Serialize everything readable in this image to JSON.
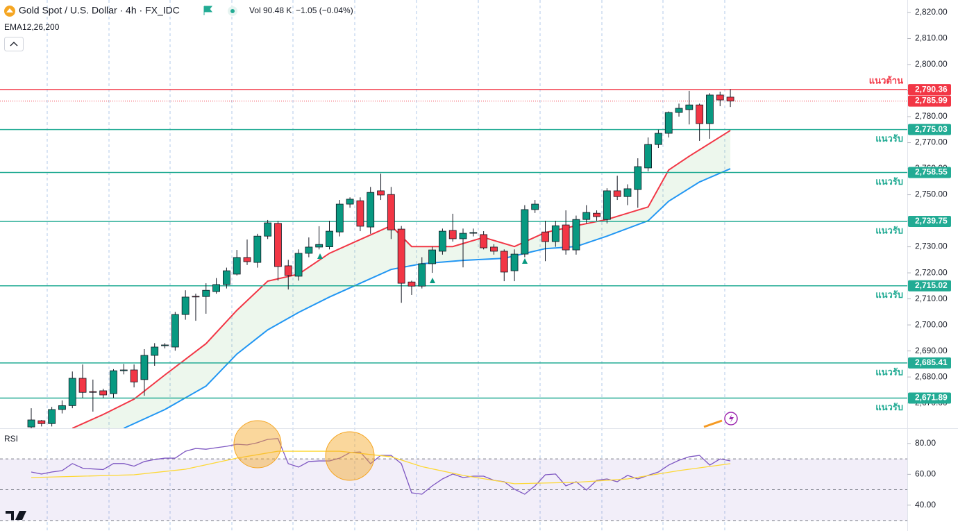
{
  "header": {
    "symbol": "Gold Spot / U.S. Dollar · 4h · FX_IDC",
    "vol_label": "Vol",
    "vol_value": "90.48 K",
    "change": "−1.05 (−0.04%)",
    "indicator": "EMA12,26,200"
  },
  "chart_data": [
    {
      "type": "candlestick",
      "up_color": "#089981",
      "down_color": "#f23645",
      "ylim": [
        2660.3,
        2824.8
      ],
      "yticks": [
        {
          "value": 2670,
          "label": "2,670.00"
        },
        {
          "value": 2680,
          "label": "2,680.00"
        },
        {
          "value": 2690,
          "label": "2,690.00"
        },
        {
          "value": 2700,
          "label": "2,700.00"
        },
        {
          "value": 2710,
          "label": "2,710.00"
        },
        {
          "value": 2720,
          "label": "2,720.00"
        },
        {
          "value": 2730,
          "label": "2,730.00"
        },
        {
          "value": 2740,
          "label": "2,740.00"
        },
        {
          "value": 2750,
          "label": "2,750.00"
        },
        {
          "value": 2760,
          "label": "2,760.00"
        },
        {
          "value": 2770,
          "label": "2,770.00"
        },
        {
          "value": 2780,
          "label": "2,780.00"
        },
        {
          "value": 2790,
          "label": "2,790.00"
        },
        {
          "value": 2800,
          "label": "2,800.00"
        },
        {
          "value": 2810,
          "label": "2,810.00"
        },
        {
          "value": 2820,
          "label": "2,820.00"
        }
      ],
      "open": [
        2660.8,
        2663.2,
        2662.1,
        2667.5,
        2669,
        2679.5,
        2674.4,
        2674.7,
        2673.6,
        2682.4,
        2682.7,
        2679,
        2688.3,
        2692,
        2691.5,
        2704,
        2711,
        2710.9,
        2712.8,
        2715.5,
        2719.5,
        2725.9,
        2724,
        2734.1,
        2739,
        2722.7,
        2718.7,
        2727.5,
        2729.9,
        2730,
        2735.7,
        2746.4,
        2747.7,
        2737.6,
        2751.5,
        2750.1,
        2736.8,
        2716.5,
        2714.9,
        2723.5,
        2728.3,
        2736.3,
        2733.1,
        2735.2,
        2734.7,
        2729.9,
        2728.3,
        2720.8,
        2727.2,
        2744.3,
        2735.7,
        2732,
        2738.4,
        2728.8,
        2740.5,
        2742.9,
        2740.5,
        2751.5,
        2749.3,
        2752,
        2760.3,
        2769.3,
        2773.6,
        2781.6,
        2782.7,
        2784.5,
        2777.3,
        2788.3,
        2787.5
      ],
      "high": [
        2668,
        2663.5,
        2668.5,
        2671,
        2682.1,
        2684.8,
        2679,
        2675.5,
        2683,
        2685,
        2684.8,
        2690.7,
        2693,
        2693,
        2705,
        2713.3,
        2712,
        2716,
        2718,
        2722,
        2728.8,
        2732.8,
        2735,
        2740.3,
        2740,
        2725,
        2729,
        2733.6,
        2737.9,
        2740,
        2748,
        2749,
        2749,
        2753,
        2758.1,
        2753,
        2738,
        2717,
        2726,
        2730,
        2737,
        2742.7,
        2737,
        2737,
        2736,
        2731,
        2729,
        2729,
        2746,
        2748,
        2740,
        2740,
        2744,
        2742,
        2746,
        2744,
        2752.5,
        2757.3,
        2754,
        2764,
        2772,
        2775,
        2782,
        2785,
        2789.9,
        2785,
        2789,
        2789.6,
        2790.6
      ],
      "low": [
        2660,
        2661,
        2661,
        2666,
        2668,
        2672,
        2666.7,
        2672,
        2672,
        2681,
        2676,
        2672.8,
        2684.3,
        2691,
        2690.1,
        2702,
        2701.6,
        2704.3,
        2712,
        2714,
        2719,
        2723,
        2722,
        2733,
        2717,
        2713.6,
        2717,
        2726,
        2729,
        2729,
        2734,
        2745,
        2736,
        2735,
        2748,
        2733,
        2708.5,
        2711.5,
        2714,
        2720,
        2727,
        2732,
        2722.1,
        2734,
        2729,
        2727,
        2716.8,
        2716.8,
        2726,
        2743,
        2724.5,
        2730,
        2727,
        2727,
        2739,
        2740,
        2739,
        2748,
        2746,
        2745,
        2759,
        2768,
        2772,
        2780,
        2777,
        2770.7,
        2771.5,
        2784,
        2783.7
      ],
      "close": [
        2663.5,
        2662.1,
        2667.5,
        2669,
        2679.5,
        2674.1,
        2674.1,
        2673.1,
        2682.4,
        2682.7,
        2678.1,
        2688.3,
        2691.5,
        2692.3,
        2704,
        2710.7,
        2710.9,
        2713.3,
        2715.5,
        2720.8,
        2725.9,
        2724.3,
        2734.1,
        2739.2,
        2722.4,
        2719,
        2727.5,
        2729.9,
        2730.9,
        2736,
        2746.4,
        2748.3,
        2737.9,
        2750.9,
        2749.9,
        2736.5,
        2716,
        2714.9,
        2723.5,
        2728.8,
        2736,
        2733.1,
        2735.2,
        2735.5,
        2729.6,
        2728.3,
        2720.3,
        2727.2,
        2744.3,
        2746.4,
        2732,
        2738.1,
        2728.8,
        2740.5,
        2743.2,
        2741.6,
        2751.5,
        2749.3,
        2752.3,
        2760.8,
        2769.3,
        2773.6,
        2781.6,
        2783.2,
        2784.5,
        2777.3,
        2788.3,
        2786.4,
        2785.99
      ],
      "series": [
        {
          "color": "#f23645",
          "x": [
            4,
            7,
            10,
            13,
            17,
            20,
            23,
            26,
            29,
            32,
            35,
            37,
            41,
            44,
            47,
            50,
            53,
            56,
            60,
            62,
            64,
            68
          ],
          "values": [
            2660.3,
            2665.6,
            2671.5,
            2680.8,
            2692.8,
            2705.6,
            2716.8,
            2719.5,
            2727.5,
            2732.8,
            2738.1,
            2730.1,
            2730.1,
            2733.6,
            2730.1,
            2735.5,
            2738.1,
            2740.5,
            2745.3,
            2759.5,
            2764.8,
            2774.7
          ]
        },
        {
          "color": "#2196f3",
          "x": [
            9,
            13,
            17,
            20,
            23,
            26,
            29,
            32,
            35,
            38,
            42,
            46,
            50,
            53,
            56,
            60,
            62,
            65,
            68
          ],
          "values": [
            2660.3,
            2667.5,
            2676.5,
            2688.8,
            2698.1,
            2704.8,
            2710.7,
            2716,
            2721.3,
            2723.5,
            2724.8,
            2725.6,
            2729.3,
            2730.1,
            2734.1,
            2740,
            2747.5,
            2754.9,
            2760
          ]
        }
      ],
      "levels": {
        "values": [
          2790.36,
          2775.03,
          2758.55,
          2739.75,
          2715.02,
          2685.41,
          2671.89
        ],
        "value_labels": [
          "2,790.36",
          "2,775.03",
          "2,758.55",
          "2,739.75",
          "2,715.02",
          "2,685.41",
          "2,671.89"
        ],
        "names": [
          "แนวต้าน",
          "แนวรับ",
          "แนวรับ",
          "แนวรับ",
          "แนวรับ",
          "แนวรับ",
          "แนวรับ"
        ],
        "colors": [
          "#f23645",
          "#22ab94",
          "#22ab94",
          "#22ab94",
          "#22ab94",
          "#22ab94",
          "#22ab94"
        ]
      },
      "price_line": {
        "value": 2785.99,
        "label": "2,785.99",
        "color": "#f23645"
      }
    },
    {
      "type": "line",
      "title": "RSI",
      "ylim": [
        23.2,
        89.9
      ],
      "yticks": [
        {
          "value": 40,
          "label": "40.00"
        },
        {
          "value": 60,
          "label": "60.00"
        },
        {
          "value": 80,
          "label": "80.00"
        }
      ],
      "bands": [
        30,
        50,
        70
      ],
      "series": [
        {
          "color": "#7e57c2",
          "x": [
            0,
            1,
            2,
            3,
            4,
            5,
            6,
            7,
            8,
            9,
            10,
            11,
            12,
            13,
            14,
            15,
            16,
            17,
            18,
            19,
            20,
            21,
            22,
            23,
            24,
            25,
            26,
            27,
            28,
            29,
            30,
            31,
            32,
            33,
            34,
            35,
            36,
            37,
            38,
            39,
            40,
            41,
            42,
            43,
            44,
            45,
            46,
            47,
            48,
            49,
            50,
            51,
            52,
            53,
            54,
            55,
            56,
            57,
            58,
            59,
            60,
            61,
            62,
            63,
            64,
            65,
            66,
            67,
            68
          ],
          "values": [
            61.5,
            60.2,
            61.5,
            62.4,
            67,
            64,
            63.5,
            63.1,
            67,
            67,
            65.3,
            68.3,
            69.6,
            70.5,
            70.5,
            75,
            76.8,
            76.3,
            77.3,
            78.2,
            79.5,
            79.1,
            80.5,
            82.7,
            83.2,
            66.9,
            64.7,
            68.3,
            68.7,
            68.7,
            70.5,
            74.1,
            74.5,
            66.9,
            72.3,
            72.3,
            66.9,
            48,
            47.1,
            52.5,
            57,
            60.2,
            57.9,
            58.8,
            58.8,
            56.1,
            55.2,
            50.3,
            47.1,
            52.5,
            59.7,
            60.2,
            52.5,
            55.2,
            49.8,
            56.1,
            57,
            55.2,
            59.3,
            57,
            59.3,
            61.5,
            66,
            69.1,
            71.4,
            72.3,
            66,
            70,
            68.7
          ]
        },
        {
          "color": "#fdd835",
          "x": [
            0,
            10,
            15,
            20,
            24,
            30,
            35,
            38,
            42,
            47,
            53,
            58,
            63,
            68
          ],
          "values": [
            57.9,
            59.7,
            63.3,
            70.5,
            75,
            75,
            71.4,
            65,
            59.3,
            53.9,
            54.8,
            57,
            62.4,
            66.9
          ]
        }
      ]
    }
  ]
}
